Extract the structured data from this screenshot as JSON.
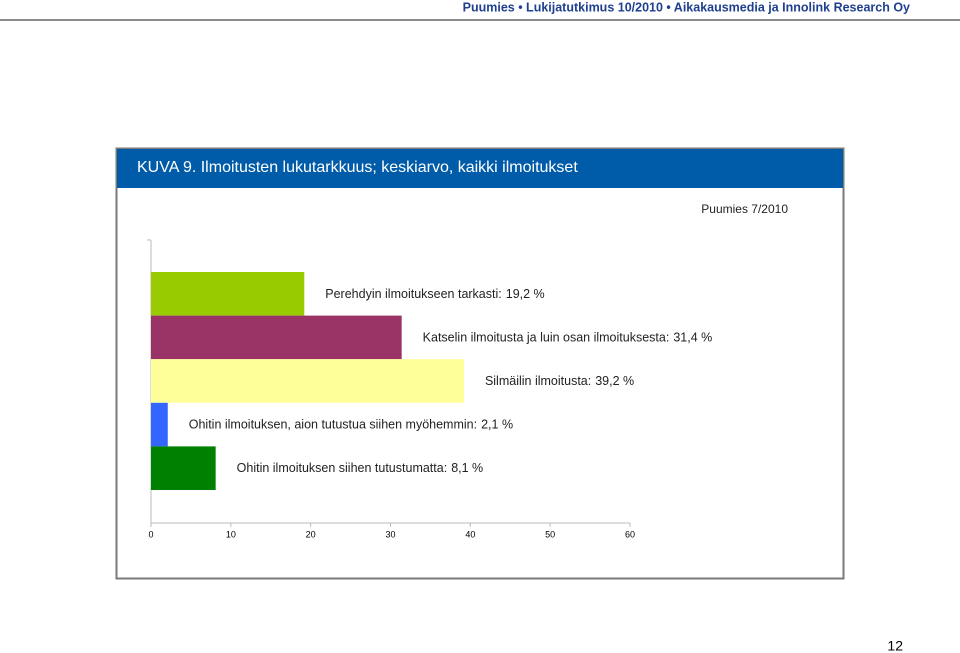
{
  "header": {
    "title": "Puumies • Lukijatutkimus 10/2010 • Aikakausmedia ja Innolink Research Oy"
  },
  "chart_data": {
    "type": "bar",
    "orientation": "horizontal",
    "title": "KUVA 9. Ilmoitusten lukutarkkuus; keskiarvo, kaikki ilmoitukset",
    "subtitle": "Puumies 7/2010",
    "categories": [
      "Perehdyin ilmoitukseen tarkasti:",
      "Katselin ilmoitusta ja luin osan ilmoituksesta:",
      "Silmäilin ilmoitusta:",
      "Ohitin ilmoituksen, aion tutustua siihen myöhemmin:",
      "Ohitin ilmoituksen siihen tutustumatta:"
    ],
    "values": [
      19.2,
      31.4,
      39.2,
      2.1,
      8.1
    ],
    "value_labels": [
      "19,2 %",
      "31,4 %",
      "39,2 %",
      "2,1 %",
      "8,1 %"
    ],
    "colors": [
      "#99cc00",
      "#993366",
      "#ffff99",
      "#3366ff",
      "#008000"
    ],
    "xlim": [
      0,
      60
    ],
    "xticks": [
      0,
      10,
      20,
      30,
      40,
      50,
      60
    ]
  },
  "footer": {
    "page_number": "12"
  }
}
